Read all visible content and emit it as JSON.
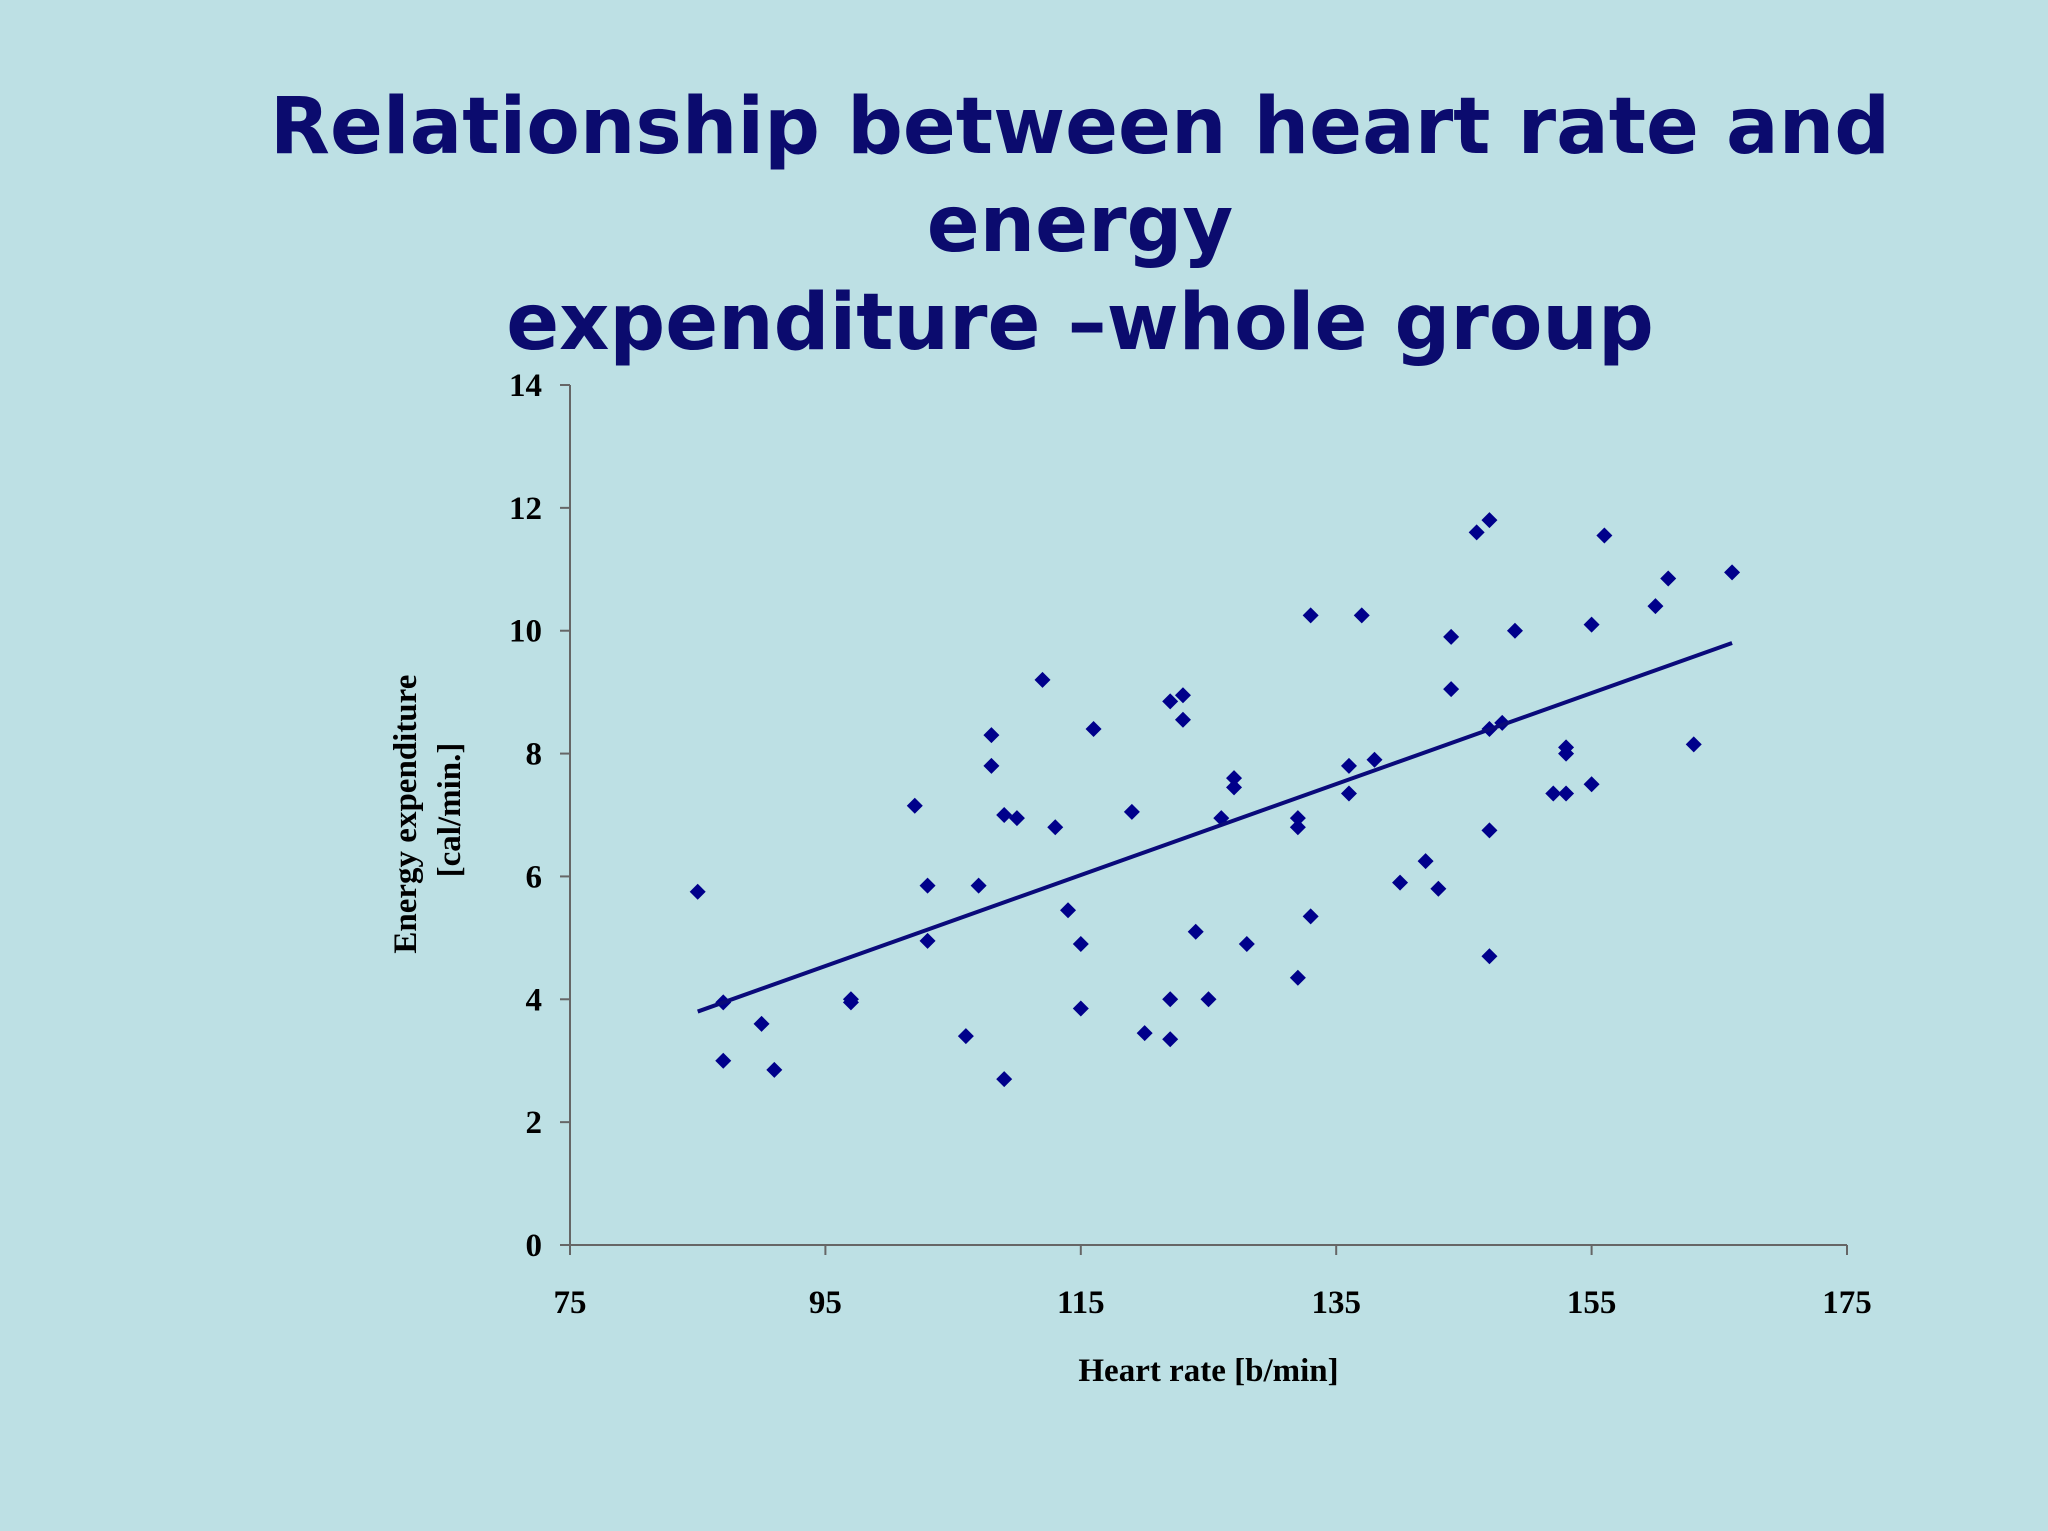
{
  "title": {
    "line1": "Relationship between heart rate and energy",
    "line2": "expenditure –whole group"
  },
  "colors": {
    "background": "#bde0e4",
    "title": "#0b0b6e",
    "marker": "#00008b",
    "trendline": "#0a0a7a",
    "axis": "#666666"
  },
  "chart_data": {
    "type": "scatter",
    "xlabel": "Heart rate [b/min]",
    "ylabel_lines": [
      "Energy expenditure",
      "[cal/min.]"
    ],
    "xlim": [
      75,
      175
    ],
    "ylim": [
      0,
      14
    ],
    "x_ticks": [
      75,
      95,
      115,
      135,
      155,
      175
    ],
    "y_ticks": [
      0,
      2,
      4,
      6,
      8,
      10,
      12,
      14
    ],
    "marker": "diamond",
    "grid": false,
    "legend": "none",
    "points": [
      [
        85,
        5.75
      ],
      [
        87,
        3.95
      ],
      [
        87,
        3.0
      ],
      [
        90,
        3.6
      ],
      [
        91,
        2.85
      ],
      [
        97,
        4.0
      ],
      [
        97,
        3.95
      ],
      [
        102,
        7.15
      ],
      [
        103,
        5.85
      ],
      [
        103,
        4.95
      ],
      [
        106,
        3.4
      ],
      [
        107,
        5.85
      ],
      [
        108,
        8.3
      ],
      [
        108,
        7.8
      ],
      [
        109,
        7.0
      ],
      [
        109,
        2.7
      ],
      [
        110,
        6.95
      ],
      [
        112,
        9.2
      ],
      [
        113,
        6.8
      ],
      [
        114,
        5.45
      ],
      [
        115,
        4.9
      ],
      [
        115,
        3.85
      ],
      [
        116,
        8.4
      ],
      [
        119,
        7.05
      ],
      [
        120,
        3.45
      ],
      [
        122,
        8.85
      ],
      [
        122,
        4.0
      ],
      [
        122,
        3.35
      ],
      [
        123,
        8.95
      ],
      [
        123,
        8.55
      ],
      [
        124,
        5.1
      ],
      [
        125,
        4.0
      ],
      [
        126,
        6.95
      ],
      [
        127,
        7.6
      ],
      [
        127,
        7.45
      ],
      [
        128,
        4.9
      ],
      [
        132,
        6.95
      ],
      [
        132,
        6.8
      ],
      [
        132,
        4.35
      ],
      [
        133,
        10.25
      ],
      [
        133,
        5.35
      ],
      [
        136,
        7.8
      ],
      [
        136,
        7.35
      ],
      [
        137,
        10.25
      ],
      [
        138,
        7.9
      ],
      [
        140,
        5.9
      ],
      [
        142,
        6.25
      ],
      [
        143,
        5.8
      ],
      [
        144,
        9.9
      ],
      [
        144,
        9.05
      ],
      [
        146,
        11.6
      ],
      [
        147,
        11.8
      ],
      [
        147,
        8.4
      ],
      [
        147,
        6.75
      ],
      [
        147,
        4.7
      ],
      [
        148,
        8.5
      ],
      [
        149,
        10.0
      ],
      [
        152,
        7.35
      ],
      [
        153,
        8.1
      ],
      [
        153,
        8.0
      ],
      [
        153,
        7.35
      ],
      [
        155,
        10.1
      ],
      [
        155,
        7.5
      ],
      [
        156,
        11.55
      ],
      [
        160,
        10.4
      ],
      [
        161,
        10.85
      ],
      [
        163,
        8.15
      ],
      [
        166,
        10.95
      ]
    ],
    "trendline": {
      "type": "linear",
      "points": [
        [
          85,
          3.8
        ],
        [
          166,
          9.8
        ]
      ]
    }
  }
}
